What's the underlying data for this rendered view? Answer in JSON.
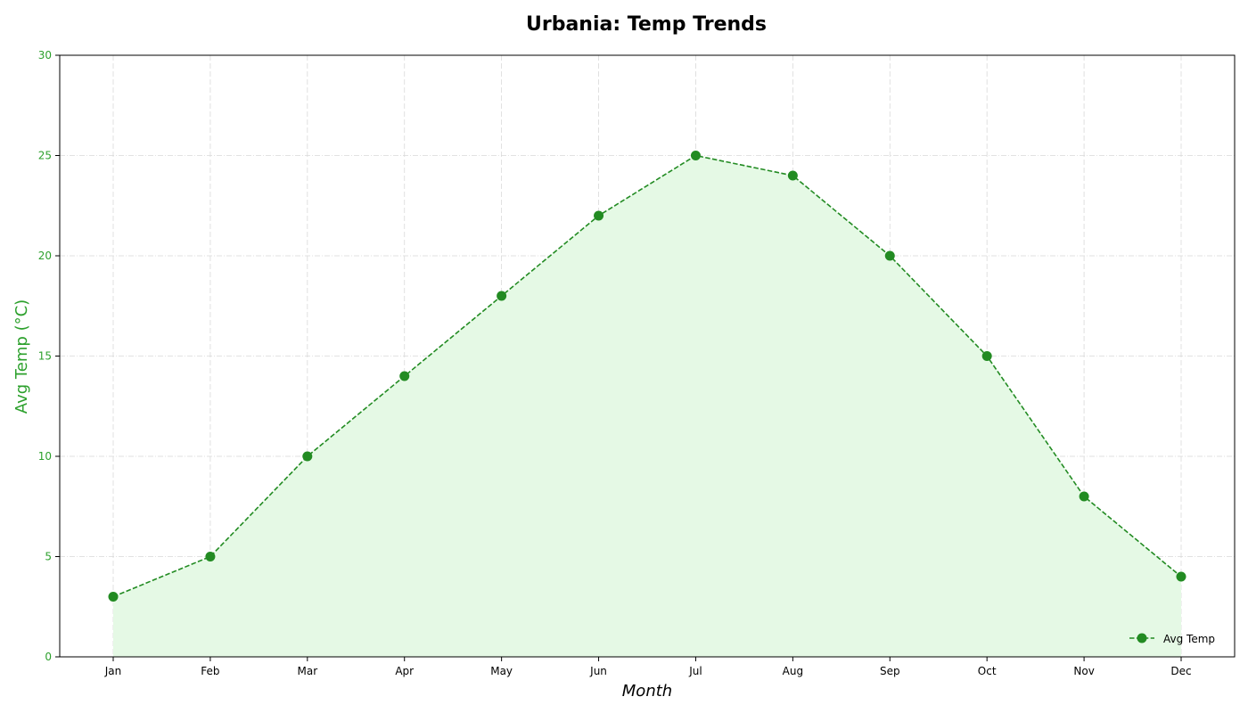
{
  "chart_data": {
    "type": "area",
    "title": "Urbania: Temp Trends",
    "xlabel": "Month",
    "ylabel": "Avg Temp (°C)",
    "categories": [
      "Jan",
      "Feb",
      "Mar",
      "Apr",
      "May",
      "Jun",
      "Jul",
      "Aug",
      "Sep",
      "Oct",
      "Nov",
      "Dec"
    ],
    "ylim": [
      0,
      30
    ],
    "yticks": [
      "0",
      "5",
      "10",
      "15",
      "20",
      "25",
      "30"
    ],
    "series": [
      {
        "name": "Avg Temp",
        "values": [
          3,
          5,
          10,
          14,
          18,
          22,
          25,
          24,
          20,
          15,
          8,
          4
        ]
      }
    ],
    "grid": true,
    "legend_position": "bottom-right",
    "colors": {
      "line": "#228b22",
      "fill": "#e5f9e5",
      "ytick": "#2ca02c",
      "ylabel": "#2ca02c",
      "grid": "#d9d9d9"
    }
  }
}
